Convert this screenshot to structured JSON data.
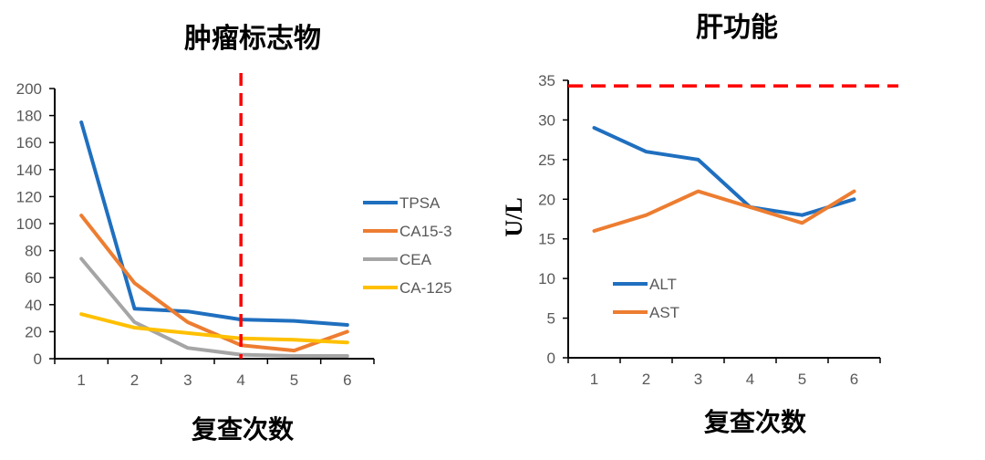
{
  "chart_data": [
    {
      "type": "line",
      "title": "肿瘤标志物",
      "xlabel": "复查次数",
      "ylabel": "",
      "categories": [
        "1",
        "2",
        "3",
        "4",
        "5",
        "6"
      ],
      "ylim": [
        0,
        200
      ],
      "yticks": [
        "0",
        "20",
        "40",
        "60",
        "80",
        "100",
        "120",
        "140",
        "160",
        "180",
        "200"
      ],
      "legend_position": "right",
      "reference_line": {
        "orientation": "vertical",
        "x": "4",
        "color": "#ff0000",
        "style": "dashed"
      },
      "series": [
        {
          "name": "TPSA",
          "color": "#1f6fbf",
          "values": [
            175,
            37,
            35,
            29,
            28,
            25
          ]
        },
        {
          "name": "CA15-3",
          "color": "#ed7d31",
          "values": [
            106,
            56,
            27,
            10,
            6,
            20
          ]
        },
        {
          "name": "CEA",
          "color": "#a5a5a5",
          "values": [
            74,
            27,
            8,
            3,
            2,
            2
          ]
        },
        {
          "name": "CA-125",
          "color": "#ffc000",
          "values": [
            33,
            23,
            19,
            15,
            14,
            12
          ]
        }
      ]
    },
    {
      "type": "line",
      "title": "肝功能",
      "xlabel": "复查次数",
      "ylabel": "U/L",
      "categories": [
        "1",
        "2",
        "3",
        "4",
        "5",
        "6"
      ],
      "ylim": [
        0,
        35
      ],
      "yticks": [
        "0",
        "5",
        "10",
        "15",
        "20",
        "25",
        "30",
        "35"
      ],
      "legend_position": "bottom-left",
      "reference_line": {
        "orientation": "horizontal",
        "y": 34.3,
        "color": "#ff0000",
        "style": "dashed"
      },
      "series": [
        {
          "name": "ALT",
          "color": "#1f6fbf",
          "values": [
            29,
            26,
            25,
            19,
            18,
            20
          ]
        },
        {
          "name": "AST",
          "color": "#ed7d31",
          "values": [
            16,
            18,
            21,
            19,
            17,
            21
          ]
        }
      ]
    }
  ]
}
